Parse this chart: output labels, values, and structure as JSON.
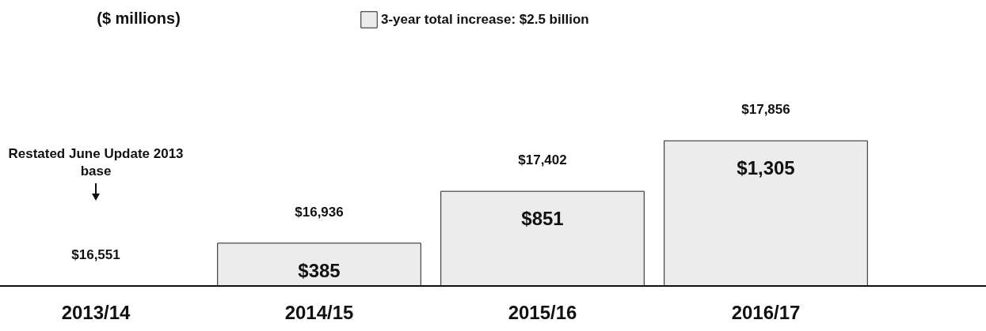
{
  "chart_data": {
    "type": "bar",
    "categories": [
      "2013/14",
      "2014/15",
      "2015/16",
      "2016/17"
    ],
    "series": [
      {
        "name": "3-year total increase: $2.5 billion",
        "color": "#ececec",
        "values": [
          0,
          385,
          851,
          1305
        ],
        "value_labels": [
          null,
          "$385",
          "$851",
          "$1,305"
        ]
      }
    ],
    "annotations": [
      "($ millions)",
      "Restated June Update 2013",
      "base",
      {
        "text": "$16,551",
        "x": "2013/14",
        "y": 0
      },
      {
        "text": "$16,936",
        "x": "2014/15",
        "y": 385
      },
      {
        "text": "$17,402",
        "x": "2015/16",
        "y": 851
      },
      {
        "text": "$17,856",
        "x": "2016/17",
        "y": 1305
      }
    ],
    "legend": "top"
  }
}
